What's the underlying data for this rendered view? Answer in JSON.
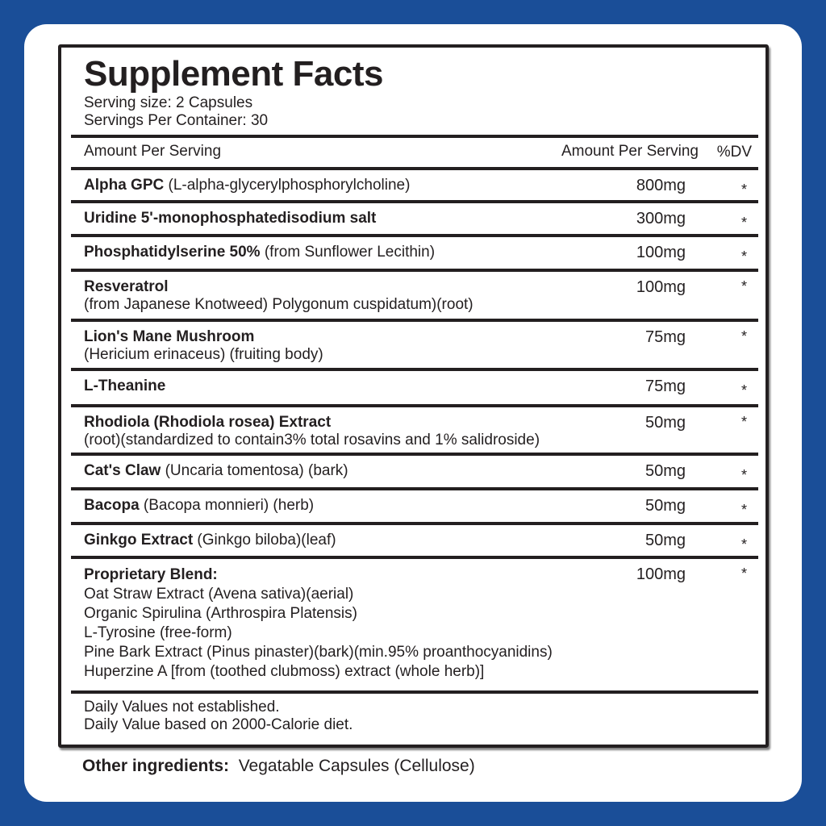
{
  "title": "Supplement Facts",
  "serving_size": "Serving size: 2 Capsules",
  "servings_per_container": "Servings Per Container: 30",
  "header": {
    "col1": "Amount Per Serving",
    "col2": "Amount Per Serving",
    "col3": "%DV"
  },
  "rows": [
    {
      "name": "Alpha GPC",
      "detail": " (L-alpha-glycerylphosphorylcholine)",
      "amount": "800mg",
      "dv": "*"
    },
    {
      "name": "Uridine 5'-monophosphatedisodium salt",
      "detail": "",
      "amount": "300mg",
      "dv": "*"
    },
    {
      "name": "Phosphatidylserine 50%",
      "detail": " (from Sunflower Lecithin)",
      "amount": "100mg",
      "dv": "*"
    },
    {
      "name": "Resveratrol",
      "detail": "(from Japanese Knotweed) Polygonum cuspidatum)(root)",
      "amount": "100mg",
      "dv": "*"
    },
    {
      "name": "Lion's Mane Mushroom",
      "detail": "(Hericium erinaceus) (fruiting body)",
      "amount": "75mg",
      "dv": "*"
    },
    {
      "name": "L-Theanine",
      "detail": "",
      "amount": "75mg",
      "dv": "*"
    },
    {
      "name": "Rhodiola (Rhodiola rosea) Extract",
      "detail": "(root)(standardized to contain3% total rosavins and 1% salidroside)",
      "amount": "50mg",
      "dv": "*"
    },
    {
      "name": "Cat's Claw",
      "detail": " (Uncaria tomentosa) (bark)",
      "amount": "50mg",
      "dv": "*"
    },
    {
      "name": "Bacopa",
      "detail": " (Bacopa monnieri) (herb)",
      "amount": "50mg",
      "dv": "*"
    },
    {
      "name": "Ginkgo Extract",
      "detail": " (Ginkgo biloba)(leaf)",
      "amount": "50mg",
      "dv": "*"
    }
  ],
  "blend": {
    "name": "Proprietary Blend:",
    "amount": "100mg",
    "dv": "*",
    "items": [
      "Oat Straw Extract (Avena sativa)(aerial)",
      "Organic  Spirulina (Arthrospira Platensis)",
      "L-Tyrosine (free-form)",
      "Pine Bark Extract (Pinus pinaster)(bark)(min.95% proanthocyanidins)",
      "Huperzine A [from (toothed clubmoss) extract (whole herb)]"
    ]
  },
  "footnotes": [
    "Daily Values not established.",
    "Daily Value based on 2000-Calorie diet."
  ],
  "other": {
    "label": "Other ingredients:",
    "value": "Vegatable Capsules (Cellulose)"
  }
}
